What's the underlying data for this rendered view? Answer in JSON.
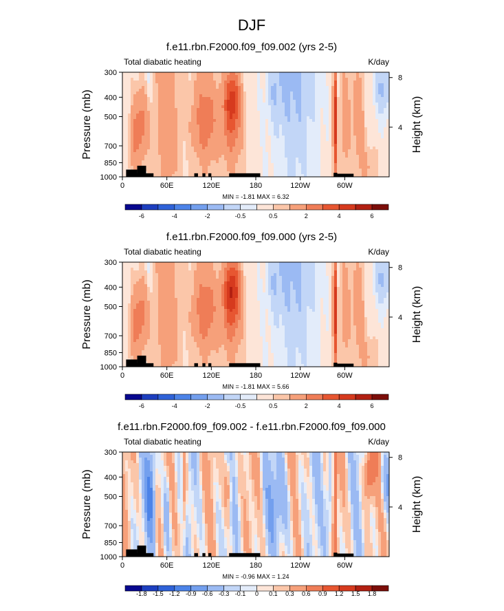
{
  "figure_title": "DJF",
  "colors": {
    "scale6": [
      "#08088f",
      "#1d3fbf",
      "#2f62d8",
      "#4c83e8",
      "#739fee",
      "#9bbaf3",
      "#c2d6f7",
      "#e3ecfa",
      "#fde5d8",
      "#fbc6a9",
      "#f6a07a",
      "#ef7d57",
      "#e75631",
      "#d63a1e",
      "#b22012",
      "#7c0e0a"
    ],
    "scale2": [
      "#08088f",
      "#1d3fbf",
      "#2f62d8",
      "#4c83e8",
      "#739fee",
      "#9bbaf3",
      "#c2d6f7",
      "#e3ecfa",
      "#fde5d8",
      "#fbc6a9",
      "#f6a07a",
      "#ef7d57",
      "#e75631",
      "#d63a1e",
      "#b22012",
      "#7c0e0a"
    ]
  },
  "chart_data": [
    {
      "type": "heatmap",
      "title": "f.e11.rbn.F2000.f09_f09.002 (yrs 2-5)",
      "left_label": "Total diabatic heating",
      "units": "K/day",
      "ylabel": "Pressure (mb)",
      "ylabel_right": "Height (km)",
      "y_ticks": [
        "300",
        "400",
        "500",
        "700",
        "850",
        "1000"
      ],
      "y_tick_values": [
        300,
        400,
        500,
        700,
        850,
        1000
      ],
      "y_right_ticks": [
        "8",
        "4"
      ],
      "y_right_tick_values": [
        8,
        4
      ],
      "x_ticks": [
        "0",
        "60E",
        "120E",
        "180",
        "120W",
        "60W"
      ],
      "x_tick_values": [
        0,
        60,
        120,
        180,
        240,
        300
      ],
      "xlim": [
        0,
        360
      ],
      "ylim": [
        1000,
        300
      ],
      "min_max_text": "MIN = -1.81   MAX =   6.32",
      "colorbar_labels": [
        "-6",
        "-4",
        "-2",
        "-0.5",
        "0.5",
        "2",
        "4",
        "6"
      ],
      "terrain_blocks": [
        [
          5,
          20,
          920
        ],
        [
          20,
          32,
          880
        ],
        [
          10,
          42,
          960
        ],
        [
          97,
          102,
          960
        ],
        [
          108,
          112,
          960
        ],
        [
          116,
          120,
          960
        ],
        [
          144,
          186,
          960
        ],
        [
          285,
          290,
          955
        ],
        [
          290,
          312,
          965
        ]
      ]
    },
    {
      "type": "heatmap",
      "title": "f.e11.rbn.F2000.f09_f09.000 (yrs 2-5)",
      "left_label": "Total diabatic heating",
      "units": "K/day",
      "ylabel": "Pressure (mb)",
      "ylabel_right": "Height (km)",
      "y_ticks": [
        "300",
        "400",
        "500",
        "700",
        "850",
        "1000"
      ],
      "y_tick_values": [
        300,
        400,
        500,
        700,
        850,
        1000
      ],
      "y_right_ticks": [
        "8",
        "4"
      ],
      "y_right_tick_values": [
        8,
        4
      ],
      "x_ticks": [
        "0",
        "60E",
        "120E",
        "180",
        "120W",
        "60W"
      ],
      "x_tick_values": [
        0,
        60,
        120,
        180,
        240,
        300
      ],
      "xlim": [
        0,
        360
      ],
      "ylim": [
        1000,
        300
      ],
      "min_max_text": "MIN = -1.81   MAX =   5.66",
      "colorbar_labels": [
        "-6",
        "-4",
        "-2",
        "-0.5",
        "0.5",
        "2",
        "4",
        "6"
      ],
      "terrain_blocks": [
        [
          5,
          20,
          920
        ],
        [
          20,
          32,
          880
        ],
        [
          10,
          42,
          960
        ],
        [
          97,
          102,
          960
        ],
        [
          108,
          112,
          960
        ],
        [
          116,
          120,
          960
        ],
        [
          144,
          186,
          960
        ],
        [
          285,
          290,
          955
        ],
        [
          290,
          312,
          965
        ]
      ]
    },
    {
      "type": "heatmap",
      "title": "f.e11.rbn.F2000.f09_f09.002 - f.e11.rbn.F2000.f09_f09.000",
      "left_label": "Total diabatic heating",
      "units": "K/day",
      "ylabel": "Pressure (mb)",
      "ylabel_right": "Height (km)",
      "y_ticks": [
        "300",
        "400",
        "500",
        "700",
        "850",
        "1000"
      ],
      "y_tick_values": [
        300,
        400,
        500,
        700,
        850,
        1000
      ],
      "y_right_ticks": [
        "8",
        "4"
      ],
      "y_right_tick_values": [
        8,
        4
      ],
      "x_ticks": [
        "0",
        "60E",
        "120E",
        "180",
        "120W",
        "60W"
      ],
      "x_tick_values": [
        0,
        60,
        120,
        180,
        240,
        300
      ],
      "xlim": [
        0,
        360
      ],
      "ylim": [
        1000,
        300
      ],
      "min_max_text": "MIN = -0.96   MAX =   1.24",
      "colorbar_labels": [
        "-1.8",
        "-1.5",
        "-1.2",
        "-0.9",
        "-0.6",
        "-0.3",
        "-0.1",
        "0",
        "0.1",
        "0.3",
        "0.6",
        "0.9",
        "1.2",
        "1.5",
        "1.8"
      ],
      "terrain_blocks": [
        [
          5,
          20,
          920
        ],
        [
          20,
          32,
          880
        ],
        [
          10,
          42,
          960
        ],
        [
          97,
          102,
          960
        ],
        [
          108,
          112,
          960
        ],
        [
          116,
          120,
          960
        ],
        [
          144,
          186,
          960
        ],
        [
          285,
          290,
          955
        ],
        [
          290,
          312,
          965
        ]
      ]
    }
  ]
}
